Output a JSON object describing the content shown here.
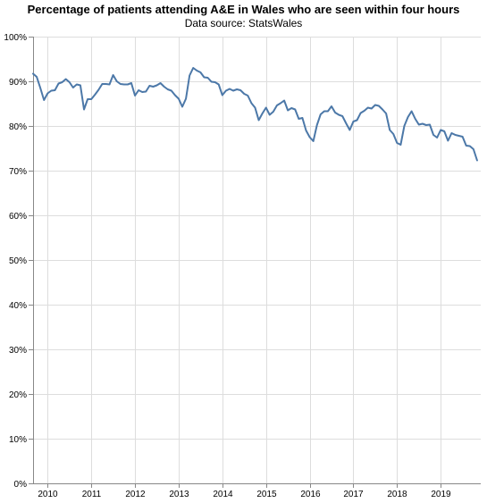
{
  "chart_data": {
    "type": "line",
    "title": "Percentage of patients attending A&E in Wales who are seen within four hours",
    "subtitle": "Data source: StatsWales",
    "xlabel": "",
    "ylabel": "",
    "x_start": "2009-09",
    "x_end": "2019-12",
    "x_ticks": [
      "2010",
      "2011",
      "2012",
      "2013",
      "2014",
      "2015",
      "2016",
      "2017",
      "2018",
      "2019"
    ],
    "y_ticks": [
      "0%",
      "10%",
      "20%",
      "30%",
      "40%",
      "50%",
      "60%",
      "70%",
      "80%",
      "90%",
      "100%"
    ],
    "ylim": [
      0,
      100
    ],
    "grid": true,
    "series": [
      {
        "name": "",
        "color": "#4c78a8",
        "points": [
          [
            "2009-09",
            91.7
          ],
          [
            "2009-10",
            91.0
          ],
          [
            "2009-11",
            88.5
          ],
          [
            "2009-12",
            85.8
          ],
          [
            "2010-01",
            87.3
          ],
          [
            "2010-02",
            87.9
          ],
          [
            "2010-03",
            88.0
          ],
          [
            "2010-04",
            89.5
          ],
          [
            "2010-05",
            89.8
          ],
          [
            "2010-06",
            90.5
          ],
          [
            "2010-07",
            89.8
          ],
          [
            "2010-08",
            88.6
          ],
          [
            "2010-09",
            89.3
          ],
          [
            "2010-10",
            89.1
          ],
          [
            "2010-11",
            83.7
          ],
          [
            "2010-12",
            86.0
          ],
          [
            "2011-01",
            86.0
          ],
          [
            "2011-02",
            87.0
          ],
          [
            "2011-03",
            88.1
          ],
          [
            "2011-04",
            89.4
          ],
          [
            "2011-05",
            89.4
          ],
          [
            "2011-06",
            89.3
          ],
          [
            "2011-07",
            91.4
          ],
          [
            "2011-08",
            90.0
          ],
          [
            "2011-09",
            89.4
          ],
          [
            "2011-10",
            89.3
          ],
          [
            "2011-11",
            89.3
          ],
          [
            "2011-12",
            89.6
          ],
          [
            "2012-01",
            86.8
          ],
          [
            "2012-02",
            88.0
          ],
          [
            "2012-03",
            87.6
          ],
          [
            "2012-04",
            87.7
          ],
          [
            "2012-05",
            89.0
          ],
          [
            "2012-06",
            88.8
          ],
          [
            "2012-07",
            89.1
          ],
          [
            "2012-08",
            89.6
          ],
          [
            "2012-09",
            88.8
          ],
          [
            "2012-10",
            88.2
          ],
          [
            "2012-11",
            87.9
          ],
          [
            "2012-12",
            86.9
          ],
          [
            "2013-01",
            86.1
          ],
          [
            "2013-02",
            84.3
          ],
          [
            "2013-03",
            86.1
          ],
          [
            "2013-04",
            91.3
          ],
          [
            "2013-05",
            93.0
          ],
          [
            "2013-06",
            92.4
          ],
          [
            "2013-07",
            92.0
          ],
          [
            "2013-08",
            90.9
          ],
          [
            "2013-09",
            90.8
          ],
          [
            "2013-10",
            89.9
          ],
          [
            "2013-11",
            89.8
          ],
          [
            "2013-12",
            89.3
          ],
          [
            "2014-01",
            86.9
          ],
          [
            "2014-02",
            87.9
          ],
          [
            "2014-03",
            88.3
          ],
          [
            "2014-04",
            87.9
          ],
          [
            "2014-05",
            88.2
          ],
          [
            "2014-06",
            88.0
          ],
          [
            "2014-07",
            87.2
          ],
          [
            "2014-08",
            86.8
          ],
          [
            "2014-09",
            85.1
          ],
          [
            "2014-10",
            84.1
          ],
          [
            "2014-11",
            81.3
          ],
          [
            "2014-12",
            82.8
          ],
          [
            "2015-01",
            84.1
          ],
          [
            "2015-02",
            82.5
          ],
          [
            "2015-03",
            83.2
          ],
          [
            "2015-04",
            84.6
          ],
          [
            "2015-05",
            85.1
          ],
          [
            "2015-06",
            85.7
          ],
          [
            "2015-07",
            83.5
          ],
          [
            "2015-08",
            84.0
          ],
          [
            "2015-09",
            83.7
          ],
          [
            "2015-10",
            81.6
          ],
          [
            "2015-11",
            81.8
          ],
          [
            "2015-12",
            79.0
          ],
          [
            "2016-01",
            77.5
          ],
          [
            "2016-02",
            76.6
          ],
          [
            "2016-03",
            80.2
          ],
          [
            "2016-04",
            82.6
          ],
          [
            "2016-05",
            83.3
          ],
          [
            "2016-06",
            83.3
          ],
          [
            "2016-07",
            84.4
          ],
          [
            "2016-08",
            83.0
          ],
          [
            "2016-09",
            82.5
          ],
          [
            "2016-10",
            82.2
          ],
          [
            "2016-11",
            80.6
          ],
          [
            "2016-12",
            79.1
          ],
          [
            "2017-01",
            81.0
          ],
          [
            "2017-02",
            81.3
          ],
          [
            "2017-03",
            82.9
          ],
          [
            "2017-04",
            83.4
          ],
          [
            "2017-05",
            84.1
          ],
          [
            "2017-06",
            83.9
          ],
          [
            "2017-07",
            84.7
          ],
          [
            "2017-08",
            84.5
          ],
          [
            "2017-09",
            83.7
          ],
          [
            "2017-10",
            82.8
          ],
          [
            "2017-11",
            79.1
          ],
          [
            "2017-12",
            78.2
          ],
          [
            "2018-01",
            76.2
          ],
          [
            "2018-02",
            75.8
          ],
          [
            "2018-03",
            80.0
          ],
          [
            "2018-04",
            82.0
          ],
          [
            "2018-05",
            83.3
          ],
          [
            "2018-06",
            81.6
          ],
          [
            "2018-07",
            80.3
          ],
          [
            "2018-08",
            80.5
          ],
          [
            "2018-09",
            80.2
          ],
          [
            "2018-10",
            80.3
          ],
          [
            "2018-11",
            78.0
          ],
          [
            "2018-12",
            77.4
          ],
          [
            "2019-01",
            79.1
          ],
          [
            "2019-02",
            78.8
          ],
          [
            "2019-03",
            76.7
          ],
          [
            "2019-04",
            78.4
          ],
          [
            "2019-05",
            78.0
          ],
          [
            "2019-06",
            77.8
          ],
          [
            "2019-07",
            77.6
          ],
          [
            "2019-08",
            75.6
          ],
          [
            "2019-09",
            75.5
          ],
          [
            "2019-10",
            74.8
          ],
          [
            "2019-11",
            72.3
          ]
        ]
      }
    ]
  }
}
